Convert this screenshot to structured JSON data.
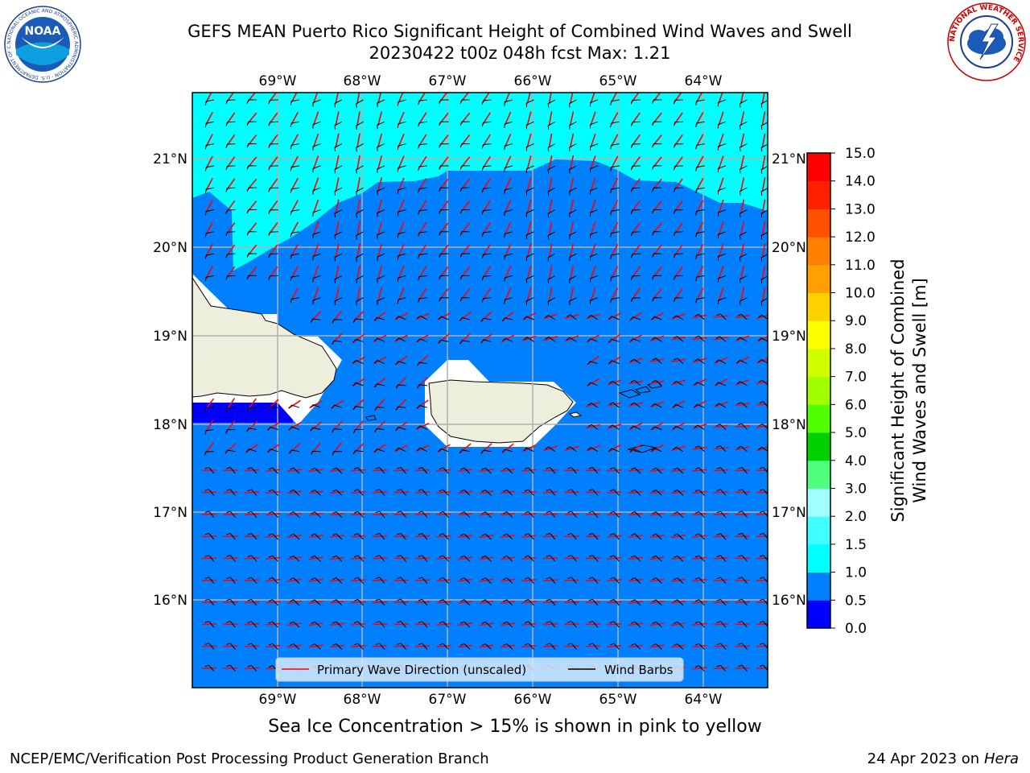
{
  "header": {
    "title_line1": "GEFS MEAN Puerto Rico Significant Height of Combined Wind Waves and Swell",
    "title_line2": "20230422 t00z 048h fcst   Max: 1.21"
  },
  "logos": {
    "noaa_text": "NOAA",
    "noaa_ring_text": "NATIONAL OCEANIC AND ATMOSPHERIC ADMINISTRATION · U.S. DEPARTMENT OF COMMERCE",
    "nws_ring_text": "NATIONAL WEATHER SERVICE"
  },
  "map": {
    "lon_labels": [
      "69°W",
      "68°W",
      "67°W",
      "66°W",
      "65°W",
      "64°W"
    ],
    "lat_labels": [
      "21°N",
      "20°N",
      "19°N",
      "18°N",
      "17°N",
      "16°N"
    ],
    "legend": {
      "wave_label": "Primary Wave Direction (unscaled)",
      "barb_label": "Wind Barbs",
      "wave_color": "#ff0000",
      "barb_color": "#000000"
    },
    "colors": {
      "sea_low": "#0080ff",
      "sea_high": "#00ffff",
      "sea_min": "#0000ff",
      "land": "#eeeedc",
      "grid": "#b0b0b0"
    }
  },
  "colorbar": {
    "label_line1": "Significant Height of Combined",
    "label_line2": "Wind Waves and Swell [m]",
    "ticks": [
      "0.0",
      "0.5",
      "1.0",
      "1.5",
      "2.0",
      "3.0",
      "4.0",
      "5.0",
      "6.0",
      "7.0",
      "8.0",
      "9.0",
      "10.0",
      "11.0",
      "12.0",
      "13.0",
      "14.0",
      "15.0"
    ],
    "colors": [
      "#0000ff",
      "#0080ff",
      "#00ffff",
      "#40ffff",
      "#a0ffff",
      "#50ff80",
      "#00d000",
      "#50ff00",
      "#a0ff00",
      "#d0ff00",
      "#ffff00",
      "#ffd000",
      "#ffa000",
      "#ff8000",
      "#ff5000",
      "#ff2000",
      "#ff0000"
    ]
  },
  "notes": {
    "ice": "Sea Ice Concentration > 15% is shown in pink to yellow"
  },
  "footer": {
    "left": "NCEP/EMC/Verification Post Processing Product Generation Branch",
    "right_date": "24 Apr 2023 on ",
    "right_host": "Hera"
  }
}
